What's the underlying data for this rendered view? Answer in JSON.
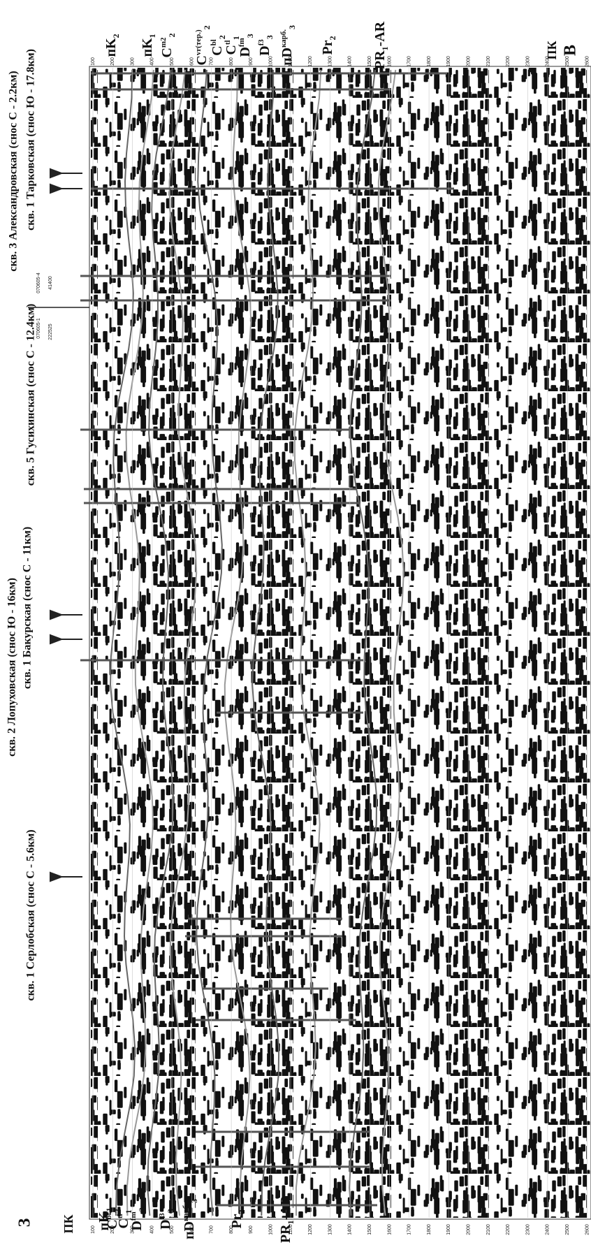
{
  "corner_labels": {
    "west": "З",
    "east": "В"
  },
  "wells": [
    "скв. 1 Серлобская (снос С - 5.6км)",
    "скв. 2 Лопуховская (снос Ю - 16км)",
    "скв. 1 Бакурская (снос С - 11км)",
    "скв. 5 Гусихинская (снос С - 12.4км)",
    "скв. 3 Александровская (снос С - 2.2км)",
    "скв. 1 Тарковская (снос Ю - 17.8км)"
  ],
  "line_labels": [
    "070605-1",
    "070605-4"
  ],
  "picket_labels": [
    "222525",
    "41400"
  ],
  "axis_label_left": "ПК",
  "axis_label_right": "ПК",
  "horizons_left": [
    {
      "base": "пK",
      "sub": "1"
    },
    {
      "base": "C",
      "sub": "2",
      "sup": "bl"
    },
    {
      "base": "C",
      "sub": "1",
      "sup": "tl"
    },
    {
      "base": "D",
      "sub": "3",
      "sup": "fm"
    },
    {
      "base": "D",
      "sub": "3",
      "sup": "f3"
    },
    {
      "base": "пD",
      "sub": "3",
      "sup": "карб."
    },
    {
      "base": "Pr",
      "sub": "2"
    },
    {
      "base": "PR",
      "sub": "1",
      "tail": "-AR"
    }
  ],
  "horizons_right": [
    {
      "base": "пK",
      "sub": "2"
    },
    {
      "base": "пK",
      "sub": "1"
    },
    {
      "base": "C",
      "sub": "2",
      "sup": "m2"
    },
    {
      "base": "C",
      "sub": "2",
      "sup": "vr(тер.)"
    },
    {
      "base": "C",
      "sub": "2",
      "sup": "bl"
    },
    {
      "base": "C",
      "sub": "1",
      "sup": "tl"
    },
    {
      "base": "D",
      "sub": "3",
      "sup": "fm"
    },
    {
      "base": "D",
      "sub": "3",
      "sup": "f3"
    },
    {
      "base": "пD",
      "sub": "3",
      "sup": "карб."
    },
    {
      "base": "Pr",
      "sub": "2"
    },
    {
      "base": "PR",
      "sub": "1",
      "tail": "-AR"
    }
  ],
  "depth_ticks": [
    100,
    200,
    300,
    400,
    500,
    600,
    700,
    800,
    900,
    1000,
    1100,
    1200,
    1300,
    1400,
    1500,
    1600,
    1700,
    1800,
    1900,
    2000,
    2100,
    2200,
    2300,
    2400,
    2500,
    2600
  ]
}
